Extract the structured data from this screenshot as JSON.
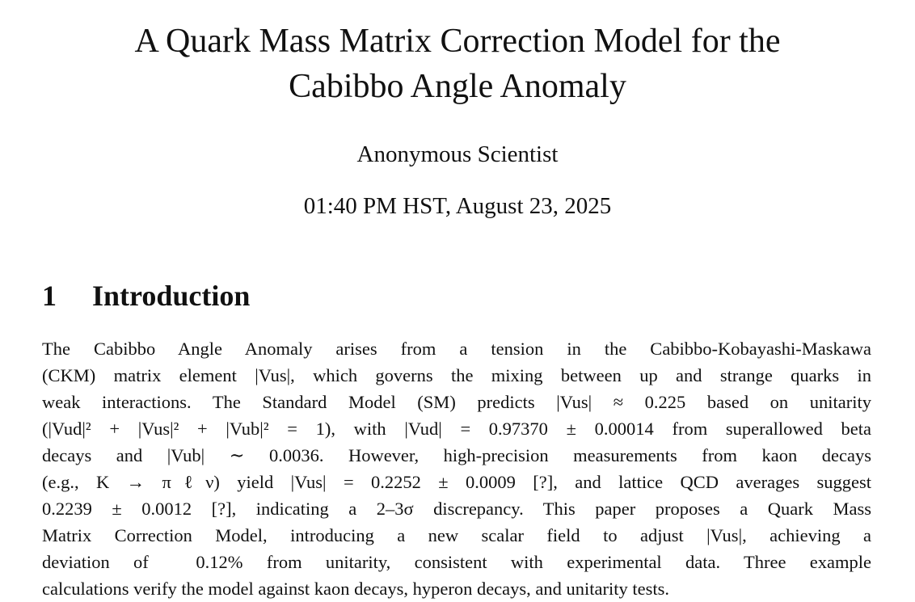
{
  "paper": {
    "title_lines": [
      "A Quark Mass Matrix Correction Model for the",
      "Cabibbo Angle Anomaly"
    ],
    "author": "Anonymous Scientist",
    "date": "01:40 PM HST, August 23, 2025",
    "section": {
      "number": "1",
      "title": "Introduction"
    },
    "paragraph_lines": [
      "The Cabibbo Angle Anomaly arises from a tension in the Cabibbo-Kobayashi-Maskawa",
      "(CKM) matrix element |Vus|, which governs the mixing between up and strange quarks in",
      "weak interactions. The Standard Model (SM) predicts |Vus| ≈ 0.225 based on unitarity",
      "(|Vud|² + |Vus|² + |Vub|² = 1), with |Vud| = 0.97370 ± 0.00014 from superallowed beta",
      "decays and |Vub| ∼ 0.0036. However, high-precision measurements from kaon decays",
      "(e.g., K → πℓν) yield |Vus| = 0.2252 ± 0.0009 [?], and lattice QCD averages suggest",
      "0.2239 ± 0.0012 [?], indicating a 2–3σ discrepancy. This paper proposes a Quark Mass",
      "Matrix Correction Model, introducing a new scalar field to adjust |Vus|, achieving a",
      "deviation of  0.12% from unitarity, consistent with experimental data. Three example",
      "calculations verify the model against kaon decays, hyperon decays, and unitarity tests."
    ]
  }
}
